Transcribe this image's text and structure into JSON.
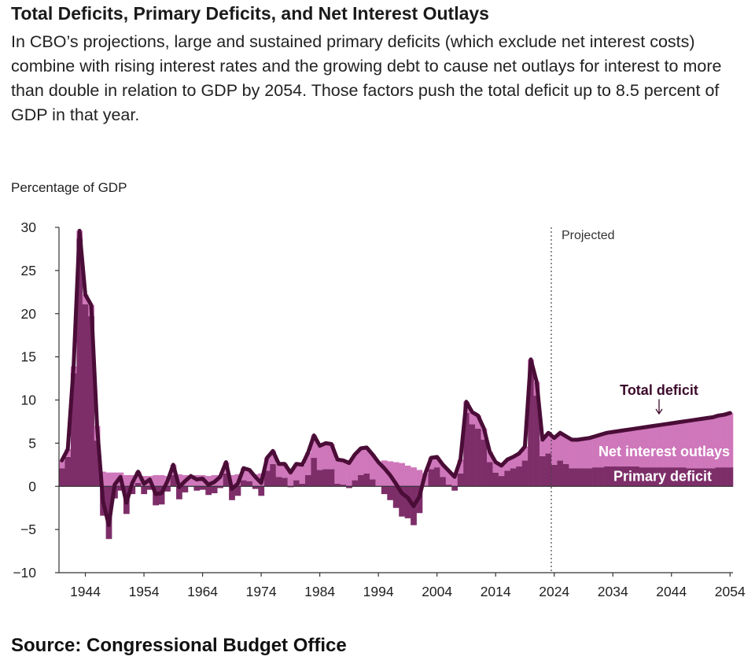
{
  "title": "Total Deficits, Primary Deficits, and Net Interest Outlays",
  "subtitle": "In CBO’s projections, large and sustained primary deficits (which exclude net interest costs) combine with rising interest rates and the growing debt to cause net outlays for interest to more than double in relation to GDP by 2054. Those factors push the total deficit up to 8.5 percent of GDP in that year.",
  "source": "Source: Congressional Budget Office",
  "colors": {
    "net_interest": "#cf77bb",
    "primary": "#7d2e69",
    "total_line": "#4a0d37",
    "axis": "#333333"
  },
  "chart_data": {
    "type": "bar",
    "ylabel": "Percentage of GDP",
    "ylim": [
      -10,
      30
    ],
    "yticks": [
      30,
      25,
      20,
      15,
      10,
      5,
      0,
      -5,
      -10
    ],
    "xlim": [
      1940,
      2054
    ],
    "xticks": [
      1944,
      1954,
      1964,
      1974,
      1984,
      1994,
      2004,
      2014,
      2024,
      2034,
      2044,
      2054
    ],
    "projected_start": 2024,
    "projected_label": "Projected",
    "series_labels": {
      "total": "Total deficit",
      "net_interest": "Net interest outlays",
      "primary": "Primary deficit"
    },
    "years": [
      1940,
      1941,
      1942,
      1943,
      1944,
      1945,
      1946,
      1947,
      1948,
      1949,
      1950,
      1951,
      1952,
      1953,
      1954,
      1955,
      1956,
      1957,
      1958,
      1959,
      1960,
      1961,
      1962,
      1963,
      1964,
      1965,
      1966,
      1967,
      1968,
      1969,
      1970,
      1971,
      1972,
      1973,
      1974,
      1975,
      1976,
      1977,
      1978,
      1979,
      1980,
      1981,
      1982,
      1983,
      1984,
      1985,
      1986,
      1987,
      1988,
      1989,
      1990,
      1991,
      1992,
      1993,
      1994,
      1995,
      1996,
      1997,
      1998,
      1999,
      2000,
      2001,
      2002,
      2003,
      2004,
      2005,
      2006,
      2007,
      2008,
      2009,
      2010,
      2011,
      2012,
      2013,
      2014,
      2015,
      2016,
      2017,
      2018,
      2019,
      2020,
      2021,
      2022,
      2023,
      2024,
      2025,
      2026,
      2027,
      2028,
      2029,
      2030,
      2031,
      2032,
      2033,
      2034,
      2035,
      2036,
      2037,
      2038,
      2039,
      2040,
      2041,
      2042,
      2043,
      2044,
      2045,
      2046,
      2047,
      2048,
      2049,
      2050,
      2051,
      2052,
      2053,
      2054
    ],
    "total_deficit": [
      3.0,
      4.3,
      13.9,
      29.6,
      22.2,
      21.0,
      7.0,
      -1.7,
      -4.5,
      0.2,
      1.1,
      -1.9,
      0.4,
      1.7,
      0.3,
      0.8,
      -0.9,
      -0.8,
      0.6,
      2.5,
      -0.1,
      0.6,
      1.2,
      0.8,
      0.9,
      0.2,
      0.5,
      1.1,
      2.8,
      -0.3,
      0.3,
      2.1,
      1.9,
      1.1,
      0.4,
      3.3,
      4.1,
      2.6,
      2.6,
      1.6,
      2.6,
      2.5,
      3.9,
      5.9,
      4.7,
      5.0,
      4.9,
      3.1,
      3.0,
      2.7,
      3.7,
      4.4,
      4.5,
      3.7,
      2.8,
      2.1,
      1.3,
      0.3,
      -0.8,
      -1.3,
      -2.3,
      -1.2,
      1.5,
      3.3,
      3.4,
      2.5,
      1.8,
      1.1,
      3.1,
      9.8,
      8.6,
      8.2,
      6.7,
      4.0,
      2.8,
      2.4,
      3.1,
      3.4,
      3.8,
      4.6,
      14.7,
      12.1,
      5.4,
      6.2,
      5.6,
      6.2,
      5.8,
      5.4,
      5.4,
      5.5,
      5.6,
      5.8,
      6.0,
      6.2,
      6.3,
      6.4,
      6.5,
      6.6,
      6.7,
      6.8,
      6.9,
      7.0,
      7.1,
      7.2,
      7.3,
      7.4,
      7.5,
      7.6,
      7.7,
      7.8,
      7.9,
      8.0,
      8.2,
      8.3,
      8.5
    ],
    "net_interest": [
      0.9,
      0.9,
      0.8,
      0.9,
      1.1,
      1.3,
      1.7,
      1.7,
      1.6,
      1.6,
      1.6,
      1.3,
      1.3,
      1.3,
      1.2,
      1.2,
      1.3,
      1.3,
      1.2,
      1.2,
      1.4,
      1.3,
      1.2,
      1.3,
      1.3,
      1.2,
      1.3,
      1.3,
      1.3,
      1.3,
      1.4,
      1.4,
      1.3,
      1.4,
      1.5,
      1.5,
      1.5,
      1.5,
      1.6,
      1.7,
      1.9,
      2.2,
      2.6,
      2.6,
      2.8,
      3.0,
      2.9,
      2.8,
      2.8,
      2.9,
      3.0,
      3.1,
      3.0,
      2.9,
      2.8,
      3.0,
      2.9,
      2.8,
      2.7,
      2.4,
      2.2,
      1.9,
      1.5,
      1.3,
      1.2,
      1.4,
      1.6,
      1.6,
      1.6,
      1.3,
      1.4,
      1.5,
      1.3,
      1.2,
      1.2,
      1.2,
      1.3,
      1.3,
      1.5,
      1.6,
      1.5,
      1.6,
      1.9,
      2.4,
      3.1,
      3.2,
      3.2,
      3.3,
      3.3,
      3.4,
      3.5,
      3.6,
      3.8,
      3.9,
      4.0,
      4.1,
      4.2,
      4.3,
      4.4,
      4.6,
      4.7,
      4.8,
      4.9,
      5.0,
      5.1,
      5.2,
      5.3,
      5.5,
      5.6,
      5.7,
      5.8,
      5.9,
      6.0,
      6.1,
      6.3
    ],
    "primary_deficit": [
      2.1,
      3.4,
      13.1,
      28.7,
      21.1,
      19.7,
      5.3,
      -3.4,
      -6.1,
      -1.4,
      -0.5,
      -3.2,
      -0.9,
      0.4,
      -0.9,
      -0.4,
      -2.2,
      -2.1,
      -0.6,
      1.3,
      -1.5,
      -0.7,
      0.0,
      -0.5,
      -0.4,
      -1.0,
      -0.8,
      -0.2,
      1.5,
      -1.6,
      -1.1,
      0.7,
      0.6,
      -0.3,
      -1.1,
      1.8,
      2.6,
      1.1,
      1.0,
      -0.1,
      0.7,
      0.3,
      1.3,
      3.3,
      1.9,
      2.0,
      2.0,
      0.3,
      0.2,
      -0.2,
      0.7,
      1.3,
      1.5,
      0.8,
      0.0,
      -0.9,
      -1.6,
      -2.5,
      -3.5,
      -3.7,
      -4.5,
      -3.1,
      0.0,
      2.0,
      2.2,
      1.1,
      0.2,
      -0.5,
      1.5,
      8.5,
      7.2,
      6.7,
      5.4,
      2.8,
      1.6,
      1.2,
      1.8,
      2.1,
      2.3,
      3.0,
      13.2,
      10.5,
      3.5,
      3.8,
      2.5,
      3.0,
      2.6,
      2.1,
      2.1,
      2.1,
      2.1,
      2.2,
      2.2,
      2.3,
      2.3,
      2.3,
      2.3,
      2.3,
      2.3,
      2.2,
      2.2,
      2.2,
      2.2,
      2.2,
      2.2,
      2.2,
      2.2,
      2.1,
      2.1,
      2.1,
      2.1,
      2.1,
      2.2,
      2.2,
      2.2
    ]
  }
}
